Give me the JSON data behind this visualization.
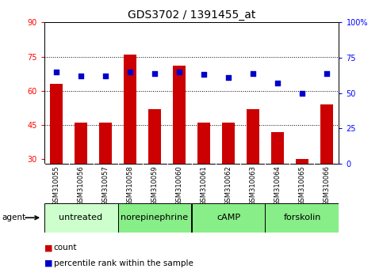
{
  "title": "GDS3702 / 1391455_at",
  "samples": [
    "GSM310055",
    "GSM310056",
    "GSM310057",
    "GSM310058",
    "GSM310059",
    "GSM310060",
    "GSM310061",
    "GSM310062",
    "GSM310063",
    "GSM310064",
    "GSM310065",
    "GSM310066"
  ],
  "counts": [
    63,
    46,
    46,
    76,
    52,
    71,
    46,
    46,
    52,
    42,
    30,
    54
  ],
  "percentile_ranks": [
    65,
    62,
    62,
    65,
    64,
    65,
    63,
    61,
    64,
    57,
    50,
    64
  ],
  "agents": [
    {
      "label": "untreated",
      "start": 0,
      "end": 3,
      "color": "#ccffcc"
    },
    {
      "label": "norepinephrine",
      "start": 3,
      "end": 6,
      "color": "#88ee88"
    },
    {
      "label": "cAMP",
      "start": 6,
      "end": 9,
      "color": "#88ee88"
    },
    {
      "label": "forskolin",
      "start": 9,
      "end": 12,
      "color": "#88ee88"
    }
  ],
  "ylim_left": [
    28,
    90
  ],
  "ylim_right": [
    0,
    100
  ],
  "yticks_left": [
    30,
    45,
    60,
    75,
    90
  ],
  "yticks_right": [
    0,
    25,
    50,
    75,
    100
  ],
  "ytick_labels_right": [
    "0",
    "25",
    "50",
    "75",
    "100%"
  ],
  "hlines": [
    45,
    60,
    75
  ],
  "bar_color": "#cc0000",
  "dot_color": "#0000cc",
  "bar_width": 0.5,
  "agent_label_fontsize": 8,
  "tick_fontsize": 7,
  "title_fontsize": 10,
  "legend_items": [
    "count",
    "percentile rank within the sample"
  ],
  "background_color": "#ffffff",
  "tick_area_bg": "#bbbbbb"
}
